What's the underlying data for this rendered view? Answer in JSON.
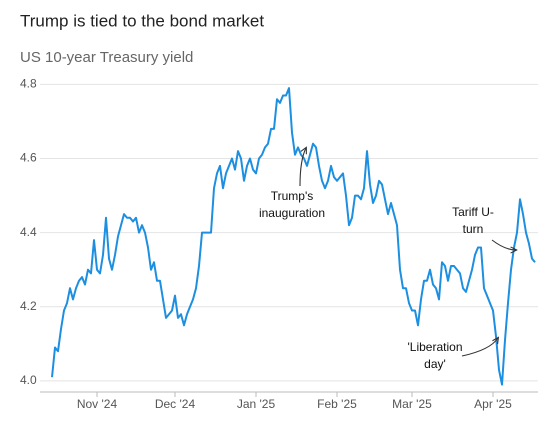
{
  "chart_data": {
    "type": "line",
    "title": "Trump is tied to the bond market",
    "subtitle": "US 10-year Treasury yield",
    "color": "#1d8fe1",
    "grid": true,
    "xlim": [
      0,
      162
    ],
    "xticks": [
      {
        "value": 15,
        "label": "Nov '24"
      },
      {
        "value": 41,
        "label": "Dec '24"
      },
      {
        "value": 68,
        "label": "Jan '25"
      },
      {
        "value": 95,
        "label": "Feb '25"
      },
      {
        "value": 120,
        "label": "Mar '25"
      },
      {
        "value": 147,
        "label": "Apr '25"
      }
    ],
    "ylim": [
      3.97,
      4.82
    ],
    "yticks": [
      {
        "value": 4,
        "label": "4.0"
      },
      4.2,
      4.4,
      4.6,
      4.8
    ],
    "values": [
      4.01,
      4.09,
      4.08,
      4.14,
      4.19,
      4.21,
      4.25,
      4.22,
      4.25,
      4.27,
      4.28,
      4.26,
      4.3,
      4.29,
      4.38,
      4.3,
      4.29,
      4.34,
      4.44,
      4.33,
      4.3,
      4.34,
      4.39,
      4.42,
      4.45,
      4.44,
      4.44,
      4.43,
      4.44,
      4.4,
      4.42,
      4.4,
      4.36,
      4.3,
      4.32,
      4.27,
      4.27,
      4.22,
      4.17,
      4.18,
      4.19,
      4.23,
      4.17,
      4.18,
      4.15,
      4.18,
      4.2,
      4.22,
      4.25,
      4.31,
      4.4,
      4.4,
      4.4,
      4.4,
      4.52,
      4.56,
      4.58,
      4.52,
      4.56,
      4.58,
      4.6,
      4.57,
      4.62,
      4.6,
      4.54,
      4.58,
      4.6,
      4.57,
      4.56,
      4.6,
      4.61,
      4.63,
      4.64,
      4.68,
      4.68,
      4.76,
      4.75,
      4.77,
      4.77,
      4.79,
      4.67,
      4.61,
      4.63,
      4.61,
      4.6,
      4.58,
      4.61,
      4.64,
      4.63,
      4.58,
      4.54,
      4.52,
      4.54,
      4.58,
      4.55,
      4.54,
      4.55,
      4.56,
      4.5,
      4.42,
      4.44,
      4.5,
      4.5,
      4.49,
      4.52,
      4.62,
      4.53,
      4.48,
      4.5,
      4.54,
      4.53,
      4.49,
      4.45,
      4.48,
      4.45,
      4.42,
      4.3,
      4.25,
      4.25,
      4.21,
      4.19,
      4.19,
      4.15,
      4.22,
      4.27,
      4.27,
      4.3,
      4.26,
      4.25,
      4.22,
      4.32,
      4.31,
      4.27,
      4.31,
      4.31,
      4.3,
      4.29,
      4.25,
      4.24,
      4.27,
      4.3,
      4.34,
      4.36,
      4.36,
      4.25,
      4.23,
      4.21,
      4.19,
      4.12,
      4.03,
      3.99,
      4.11,
      4.21,
      4.3,
      4.36,
      4.4,
      4.49,
      4.45,
      4.4,
      4.37,
      4.33,
      4.32
    ],
    "annotations": [
      {
        "lines": [
          "Trump's",
          "inauguration"
        ]
      },
      {
        "lines": [
          "'Liberation",
          "day'"
        ]
      },
      {
        "lines": [
          "Tariff U-",
          "turn"
        ]
      }
    ]
  }
}
